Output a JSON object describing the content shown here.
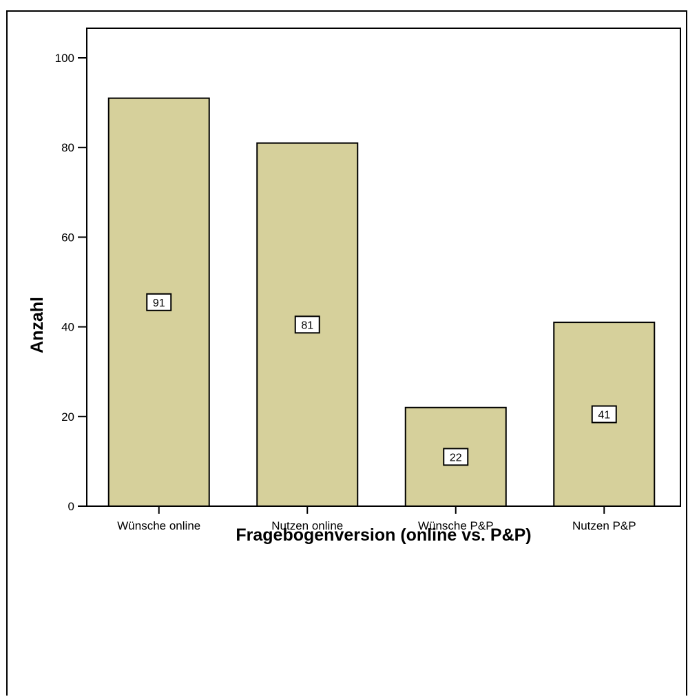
{
  "chart_data": {
    "type": "bar",
    "categories": [
      "Wünsche online",
      "Nutzen online",
      "Wünsche P&P",
      "Nutzen P&P"
    ],
    "values": [
      91,
      81,
      22,
      41
    ],
    "data_labels": [
      "91",
      "81",
      "22",
      "41"
    ],
    "title": "",
    "xlabel": "Fragebogenversion (online vs. P&P)",
    "ylabel": "Anzahl",
    "ylim": [
      0,
      105
    ],
    "yticks": [
      0,
      20,
      40,
      60,
      80,
      100
    ],
    "ytick_labels": [
      "0",
      "20",
      "40",
      "60",
      "80",
      "100"
    ],
    "grid": false,
    "legend": "none",
    "bar_color": "#d6d09b",
    "bar_edge_color": "#000000",
    "data_label_position": "middle of bar"
  }
}
